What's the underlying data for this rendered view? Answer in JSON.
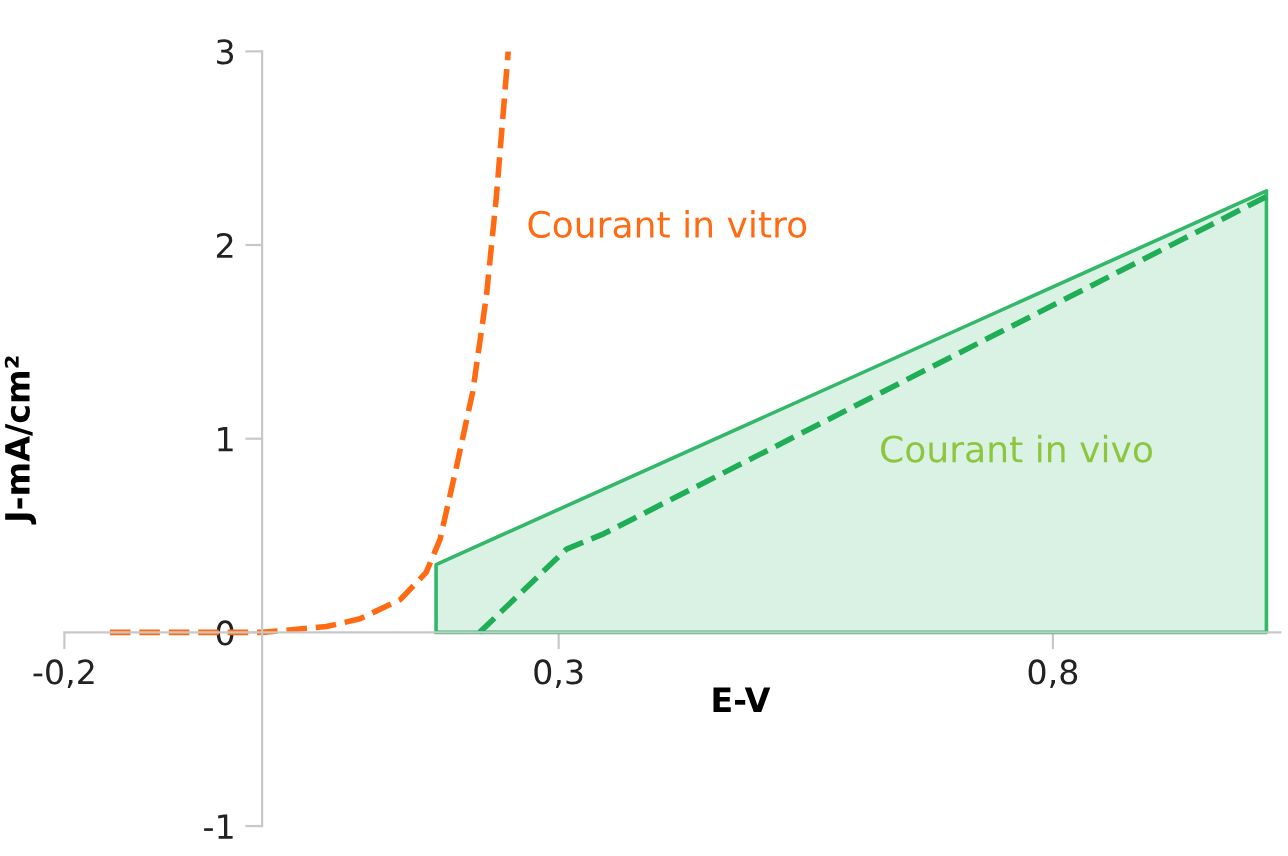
{
  "chart_data": {
    "type": "line",
    "xlabel": "E-V",
    "ylabel": "J-mA/cm²",
    "xlim": [
      -0.2,
      1.03
    ],
    "ylim": [
      -1,
      3
    ],
    "xticks": [
      {
        "value": -0.2,
        "label": "-0,2"
      },
      {
        "value": 0.3,
        "label": "0,3"
      },
      {
        "value": 0.8,
        "label": "0,8"
      }
    ],
    "yticks": [
      -1,
      0,
      1,
      2,
      3
    ],
    "grid": false,
    "legend": false,
    "line_style": "dashed",
    "series": [
      {
        "color": "#ff6a13",
        "x": [
          -0.154,
          0,
          0.065,
          0.099,
          0.14,
          0.166,
          0.18,
          0.196,
          0.213,
          0.227,
          0.237,
          0.249
        ],
        "values": [
          0,
          0,
          0.03,
          0.07,
          0.17,
          0.31,
          0.48,
          0.84,
          1.24,
          1.74,
          2.25,
          3.0
        ]
      },
      {
        "type": "area",
        "color": "#33b86a",
        "x": [
          0.176,
          1.016
        ],
        "values": [
          0.35,
          2.28
        ]
      },
      {
        "color": "#1fae55",
        "x": [
          0.22,
          0.308,
          0.346,
          1.016
        ],
        "values": [
          0,
          0.43,
          0.51,
          2.25
        ]
      }
    ],
    "annotations": [
      "Courant in vitro",
      "Courant in vivo"
    ]
  }
}
